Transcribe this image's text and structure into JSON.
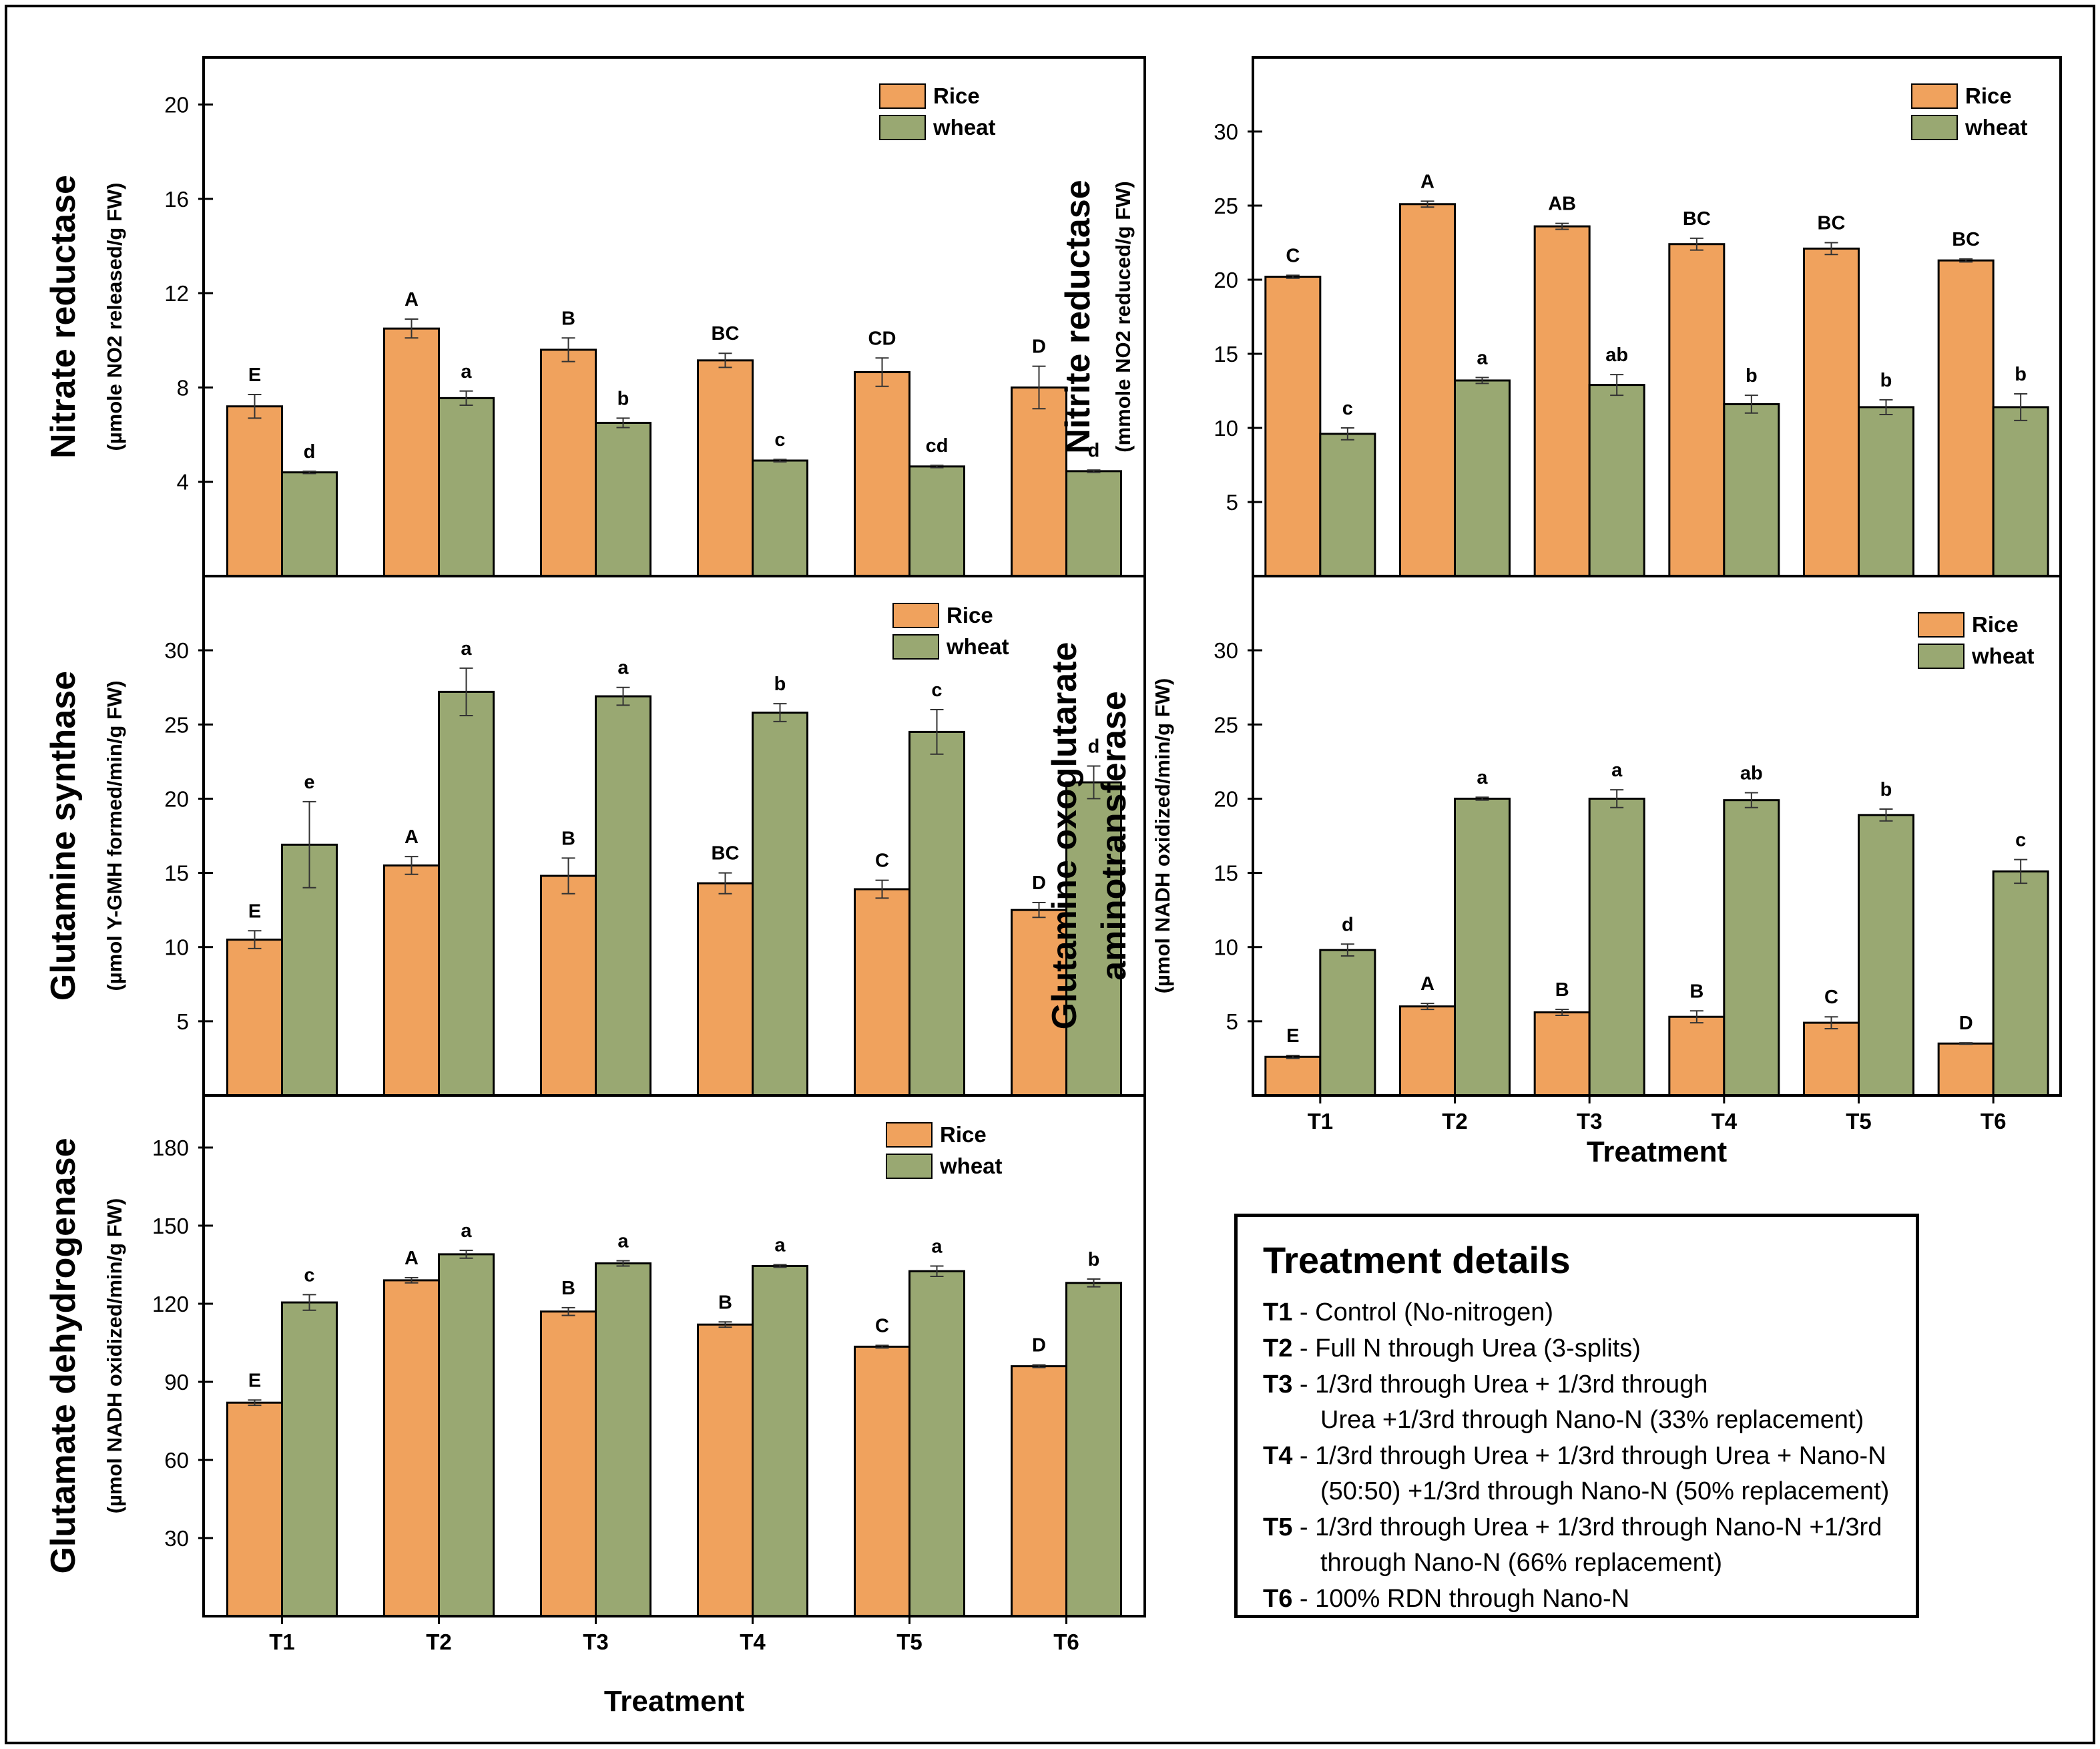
{
  "colors": {
    "rice": "#f0a25d",
    "wheat": "#99a872",
    "stroke": "#000000"
  },
  "legend": {
    "rice": "Rice",
    "wheat": "wheat"
  },
  "x_axis_title": "Treatment",
  "treatments": [
    "T1",
    "T2",
    "T3",
    "T4",
    "T5",
    "T6"
  ],
  "chart_data": [
    {
      "id": "nitrate-reductase",
      "type": "bar",
      "title": "Nitrate reductase",
      "ylabel": "(µmole NO2 released/g FW)",
      "yticks": [
        4,
        8,
        12,
        16,
        20
      ],
      "ylim": [
        0,
        22
      ],
      "categories": [
        "T1",
        "T2",
        "T3",
        "T4",
        "T5",
        "T6"
      ],
      "series": [
        {
          "name": "Rice",
          "values": [
            7.2,
            10.5,
            9.6,
            9.15,
            8.65,
            8.0
          ],
          "errors": [
            0.5,
            0.4,
            0.5,
            0.3,
            0.6,
            0.9
          ],
          "letters": [
            "E",
            "A",
            "B",
            "BC",
            "CD",
            "D"
          ]
        },
        {
          "name": "wheat",
          "values": [
            4.4,
            7.55,
            6.5,
            4.9,
            4.65,
            4.45
          ],
          "errors": [
            0.05,
            0.3,
            0.2,
            0.05,
            0.05,
            0.05
          ],
          "letters": [
            "d",
            "a",
            "b",
            "c",
            "cd",
            "d"
          ]
        }
      ]
    },
    {
      "id": "nitrite-reductase",
      "type": "bar",
      "title": "Nitrite reductase",
      "ylabel": "(mmole NO2 reduced/g FW)",
      "yticks": [
        5,
        10,
        15,
        20,
        25,
        30
      ],
      "ylim": [
        0,
        35
      ],
      "categories": [
        "T1",
        "T2",
        "T3",
        "T4",
        "T5",
        "T6"
      ],
      "series": [
        {
          "name": "Rice",
          "values": [
            20.2,
            25.1,
            23.6,
            22.4,
            22.1,
            21.3
          ],
          "errors": [
            0.1,
            0.2,
            0.2,
            0.4,
            0.4,
            0.1
          ],
          "letters": [
            "C",
            "A",
            "AB",
            "BC",
            "BC",
            "BC"
          ]
        },
        {
          "name": "wheat",
          "values": [
            9.6,
            13.2,
            12.9,
            11.6,
            11.4,
            11.4
          ],
          "errors": [
            0.4,
            0.2,
            0.7,
            0.6,
            0.5,
            0.9
          ],
          "letters": [
            "c",
            "a",
            "ab",
            "b",
            "b",
            "b"
          ]
        }
      ]
    },
    {
      "id": "glutamine-synthase",
      "type": "bar",
      "title": "Glutamine synthase",
      "ylabel": "(µmol Y-GMH formed/min/g FW)",
      "yticks": [
        5,
        10,
        15,
        20,
        25,
        30
      ],
      "ylim": [
        0,
        35
      ],
      "categories": [
        "T1",
        "T2",
        "T3",
        "T4",
        "T5",
        "T6"
      ],
      "series": [
        {
          "name": "Rice",
          "values": [
            10.5,
            15.5,
            14.8,
            14.3,
            13.9,
            12.5
          ],
          "errors": [
            0.6,
            0.6,
            1.2,
            0.7,
            0.6,
            0.5
          ],
          "letters": [
            "E",
            "A",
            "B",
            "BC",
            "C",
            "D"
          ]
        },
        {
          "name": "wheat",
          "values": [
            16.9,
            27.2,
            26.9,
            25.8,
            24.5,
            21.1
          ],
          "errors": [
            2.9,
            1.6,
            0.6,
            0.6,
            1.5,
            1.1
          ],
          "letters": [
            "e",
            "a",
            "a",
            "b",
            "c",
            "d"
          ]
        }
      ]
    },
    {
      "id": "gogat",
      "type": "bar",
      "title": "Glutamine oxoglutarate aminotransferase",
      "title_lines": [
        "Glutamine oxoglutarate",
        "aminotransferase"
      ],
      "ylabel": "(µmol NADH oxidized/min/g FW)",
      "yticks": [
        5,
        10,
        15,
        20,
        25,
        30
      ],
      "ylim": [
        0,
        35
      ],
      "categories": [
        "T1",
        "T2",
        "T3",
        "T4",
        "T5",
        "T6"
      ],
      "series": [
        {
          "name": "Rice",
          "values": [
            2.6,
            6.0,
            5.6,
            5.3,
            4.9,
            3.5
          ],
          "errors": [
            0.1,
            0.2,
            0.2,
            0.4,
            0.4,
            0.05
          ],
          "letters": [
            "E",
            "A",
            "B",
            "B",
            "C",
            "D"
          ]
        },
        {
          "name": "wheat",
          "values": [
            9.8,
            20.0,
            20.0,
            19.9,
            18.9,
            15.1
          ],
          "errors": [
            0.4,
            0.1,
            0.6,
            0.5,
            0.4,
            0.8
          ],
          "letters": [
            "d",
            "a",
            "a",
            "ab",
            "b",
            "c"
          ]
        }
      ]
    },
    {
      "id": "glutamate-dehydrogenase",
      "type": "bar",
      "title": "Glutamate dehydrogenase",
      "ylabel": "(µmol NADH oxidized/min/g FW)",
      "yticks": [
        30,
        60,
        90,
        120,
        150,
        180
      ],
      "ylim": [
        0,
        200
      ],
      "categories": [
        "T1",
        "T2",
        "T3",
        "T4",
        "T5",
        "T6"
      ],
      "series": [
        {
          "name": "Rice",
          "values": [
            82,
            129,
            117,
            112,
            103.5,
            96
          ],
          "errors": [
            1,
            1,
            1.5,
            1,
            0.5,
            0.5
          ],
          "letters": [
            "E",
            "A",
            "B",
            "B",
            "C",
            "D"
          ]
        },
        {
          "name": "wheat",
          "values": [
            120.5,
            139,
            135.5,
            134.5,
            132.5,
            128
          ],
          "errors": [
            3,
            1.5,
            1,
            0.5,
            2,
            1.5
          ],
          "letters": [
            "c",
            "a",
            "a",
            "a",
            "a",
            "b"
          ]
        }
      ]
    }
  ],
  "treatment_details": {
    "title": "Treatment details",
    "lines": [
      {
        "label": "T1",
        "text": " - Control (No-nitrogen)"
      },
      {
        "label": "T2",
        "text": " -  Full N through Urea (3-splits)"
      },
      {
        "label": "T3",
        "text": " - 1/3rd through Urea + 1/3rd through"
      },
      {
        "label": "",
        "text": "Urea +1/3rd through Nano-N (33% replacement)"
      },
      {
        "label": "T4",
        "text": " - 1/3rd through Urea + 1/3rd through Urea + Nano-N"
      },
      {
        "label": "",
        "text": "(50:50) +1/3rd through Nano-N (50% replacement)"
      },
      {
        "label": "T5",
        "text": " - 1/3rd through Urea + 1/3rd through Nano-N +1/3rd"
      },
      {
        "label": "",
        "text": "through Nano-N (66% replacement)"
      },
      {
        "label": "T6",
        "text": " - 100% RDN through Nano-N"
      }
    ]
  }
}
